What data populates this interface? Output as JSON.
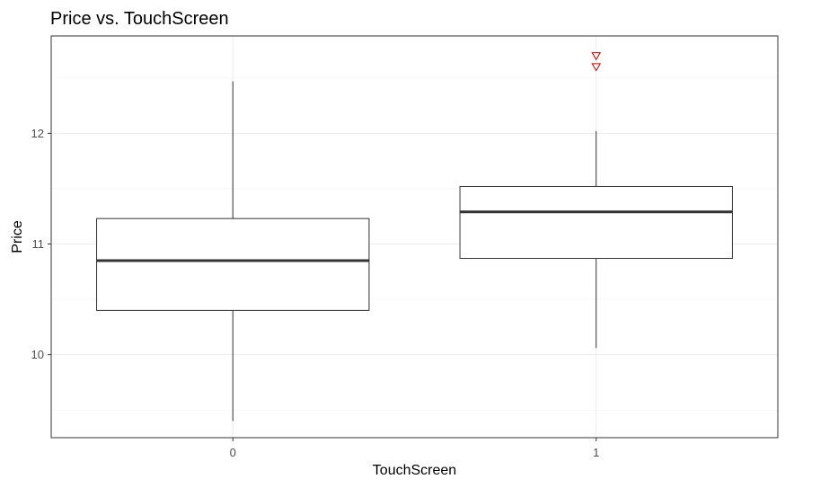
{
  "chart_data": {
    "type": "box",
    "title": "Price vs. TouchScreen",
    "xlabel": "TouchScreen",
    "ylabel": "Price",
    "categories": [
      "0",
      "1"
    ],
    "ylim": [
      9.25,
      12.88
    ],
    "yticks": [
      10,
      11,
      12
    ],
    "grid": true,
    "outlier_color": "#cc0000",
    "outlier_shape": "open-triangle-down",
    "boxes": [
      {
        "category": "0",
        "whisker_low": 9.4,
        "q1": 10.4,
        "median": 10.85,
        "q3": 11.23,
        "whisker_high": 12.47,
        "outliers": []
      },
      {
        "category": "1",
        "whisker_low": 10.06,
        "q1": 10.87,
        "median": 11.29,
        "q3": 11.52,
        "whisker_high": 12.02,
        "outliers": [
          12.6,
          12.7
        ]
      }
    ]
  }
}
